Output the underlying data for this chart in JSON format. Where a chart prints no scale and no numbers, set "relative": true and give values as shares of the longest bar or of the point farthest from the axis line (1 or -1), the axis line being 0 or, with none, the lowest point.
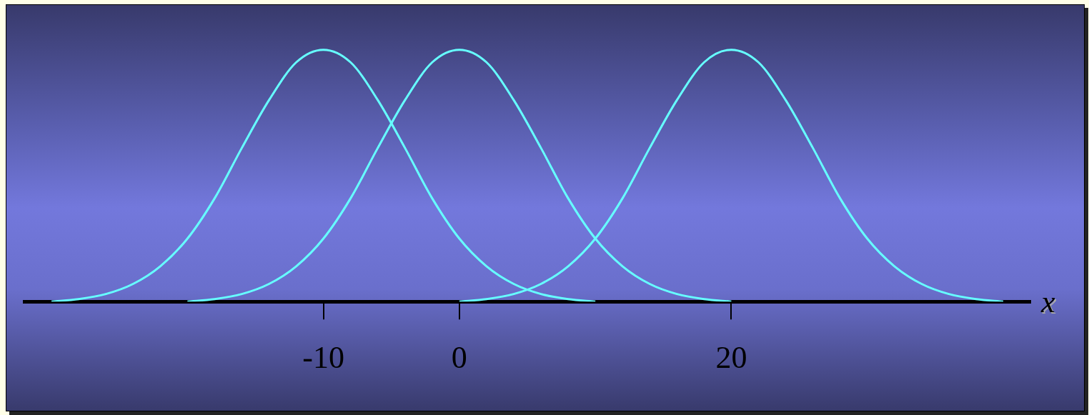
{
  "chart_data": {
    "type": "line",
    "relative": true,
    "xlabel": "x",
    "xlim": [
      -32,
      42
    ],
    "xticks": [
      -10,
      0,
      20
    ],
    "grid": false,
    "series": [
      {
        "color": "#66ffff",
        "x": [
          -30,
          -28,
          -26,
          -24,
          -22,
          -20,
          -18,
          -16,
          -14,
          -12,
          -10,
          -8,
          -6,
          -4,
          -2,
          0,
          2,
          4,
          6,
          8,
          10
        ],
        "values": [
          0,
          0.01,
          0.03,
          0.07,
          0.14,
          0.25,
          0.41,
          0.61,
          0.8,
          0.95,
          1,
          0.95,
          0.8,
          0.61,
          0.41,
          0.25,
          0.14,
          0.07,
          0.03,
          0.01,
          0
        ]
      },
      {
        "color": "#66ffff",
        "x": [
          -20,
          -18,
          -16,
          -14,
          -12,
          -10,
          -8,
          -6,
          -4,
          -2,
          0,
          2,
          4,
          6,
          8,
          10,
          12,
          14,
          16,
          18,
          20
        ],
        "values": [
          0,
          0.01,
          0.03,
          0.07,
          0.14,
          0.25,
          0.41,
          0.61,
          0.8,
          0.95,
          1,
          0.95,
          0.8,
          0.61,
          0.41,
          0.25,
          0.14,
          0.07,
          0.03,
          0.01,
          0
        ]
      },
      {
        "color": "#66ffff",
        "x": [
          0,
          2,
          4,
          6,
          8,
          10,
          12,
          14,
          16,
          18,
          20,
          22,
          24,
          26,
          28,
          30,
          32,
          34,
          36,
          38,
          40
        ],
        "values": [
          0,
          0.01,
          0.03,
          0.07,
          0.14,
          0.25,
          0.41,
          0.61,
          0.8,
          0.95,
          1,
          0.95,
          0.8,
          0.61,
          0.41,
          0.25,
          0.14,
          0.07,
          0.03,
          0.01,
          0
        ]
      }
    ]
  }
}
